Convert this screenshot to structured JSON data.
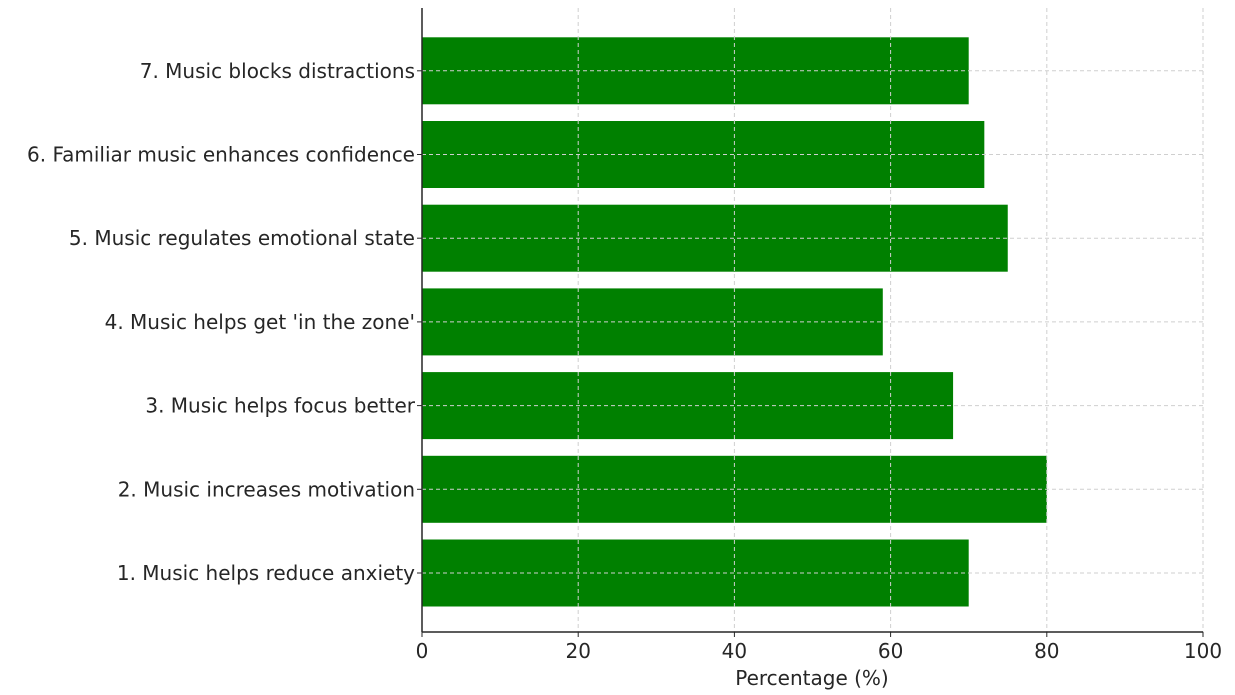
{
  "chart_data": {
    "type": "bar",
    "orientation": "horizontal",
    "title": "",
    "xlabel": "Percentage (%)",
    "ylabel": "",
    "xlim": [
      0,
      100
    ],
    "x_ticks": [
      0,
      20,
      40,
      60,
      80,
      100
    ],
    "grid": true,
    "bar_color": "#008000",
    "categories": [
      "1. Music helps reduce anxiety",
      "2. Music increases motivation",
      "3. Music helps focus better",
      "4. Music helps get 'in the zone'",
      "5. Music regulates emotional state",
      "6. Familiar music enhances confidence",
      "7. Music blocks distractions"
    ],
    "values": [
      70,
      80,
      68,
      59,
      75,
      72,
      70
    ]
  }
}
